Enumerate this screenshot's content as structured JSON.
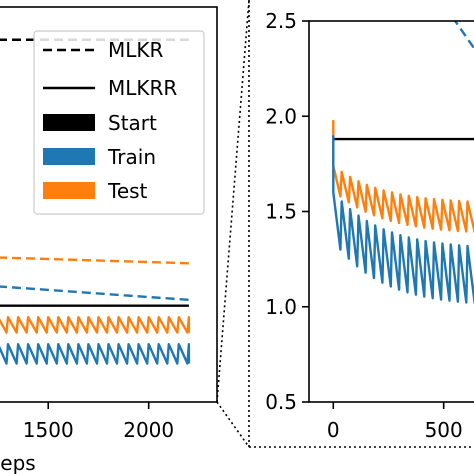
{
  "chart_data": [
    {
      "panel": "left",
      "type": "line",
      "xlabel_visible_fragment": "eps",
      "x_ticks": [
        1500,
        2000
      ],
      "x_tick_labels": [
        "1500",
        "2000"
      ],
      "xlim": [
        1250,
        2340
      ],
      "ylim": [
        0.5,
        2.55
      ],
      "grid": false,
      "legend": {
        "placement": "top-right",
        "entries": [
          {
            "label": "MLKR",
            "style": "dashed",
            "color": "#000000"
          },
          {
            "label": "MLKRR",
            "style": "solid",
            "color": "#000000"
          },
          {
            "label": "Start",
            "style": "patch",
            "color": "#000000"
          },
          {
            "label": "Train",
            "style": "patch",
            "color": "#1f77b4"
          },
          {
            "label": "Test",
            "style": "patch",
            "color": "#ff7f0e"
          }
        ]
      },
      "series": [
        {
          "name": "MLKR",
          "kind": "dashed",
          "role": "Start",
          "color": "#000000",
          "x": [
            1250,
            2200
          ],
          "y": [
            2.38,
            2.38
          ]
        },
        {
          "name": "MLKR",
          "kind": "dashed",
          "role": "Test",
          "color": "#ff7f0e",
          "x": [
            1250,
            2200
          ],
          "y": [
            1.25,
            1.22
          ]
        },
        {
          "name": "MLKR",
          "kind": "dashed",
          "role": "Train",
          "color": "#1f77b4",
          "x": [
            1250,
            2200
          ],
          "y": [
            1.1,
            1.03
          ]
        },
        {
          "name": "MLKRR",
          "kind": "solid",
          "role": "Start",
          "color": "#000000",
          "x": [
            1250,
            2200
          ],
          "y": [
            1.0,
            1.0
          ]
        },
        {
          "name": "MLKRR",
          "kind": "solid",
          "role": "Test",
          "color": "#ff7f0e",
          "x_range": [
            1250,
            2200
          ],
          "y_base": 0.86,
          "y_peak": 0.94,
          "period": 50
        },
        {
          "name": "MLKRR",
          "kind": "solid",
          "role": "Train",
          "color": "#1f77b4",
          "x_range": [
            1250,
            2200
          ],
          "y_base": 0.7,
          "y_peak": 0.8,
          "period": 50
        }
      ]
    },
    {
      "panel": "right-inset",
      "type": "line",
      "y_ticks": [
        0.5,
        1.0,
        1.5,
        2.0,
        2.5
      ],
      "y_tick_labels": [
        "0.5",
        "1.0",
        "1.5",
        "2.0",
        "2.5"
      ],
      "x_ticks": [
        0,
        500
      ],
      "x_tick_labels": [
        "0",
        "500"
      ],
      "xlim": [
        -110,
        660
      ],
      "ylim": [
        0.5,
        2.5
      ],
      "grid": false,
      "series": [
        {
          "name": "MLKR",
          "kind": "dashed",
          "role": "Train",
          "color": "#1f77b4",
          "x": [
            540,
            660
          ],
          "y": [
            2.52,
            2.32
          ]
        },
        {
          "name": "MLKRR",
          "kind": "solid",
          "role": "Start",
          "color": "#000000",
          "x": [
            0,
            660
          ],
          "y": [
            1.88,
            1.88
          ]
        },
        {
          "name": "MLKRR",
          "kind": "solid",
          "role": "Test",
          "color": "#ff7f0e",
          "x_range": [
            0,
            660
          ],
          "y_start": 1.98,
          "y_base_start": 1.58,
          "y_base_end": 1.38,
          "amp": 0.16,
          "period": 38
        },
        {
          "name": "MLKRR",
          "kind": "solid",
          "role": "Train",
          "color": "#1f77b4",
          "x_range": [
            0,
            660
          ],
          "y_start": 1.9,
          "y_base_start": 1.3,
          "y_base_end": 1.0,
          "amp": 0.3,
          "period": 38
        }
      ]
    }
  ]
}
